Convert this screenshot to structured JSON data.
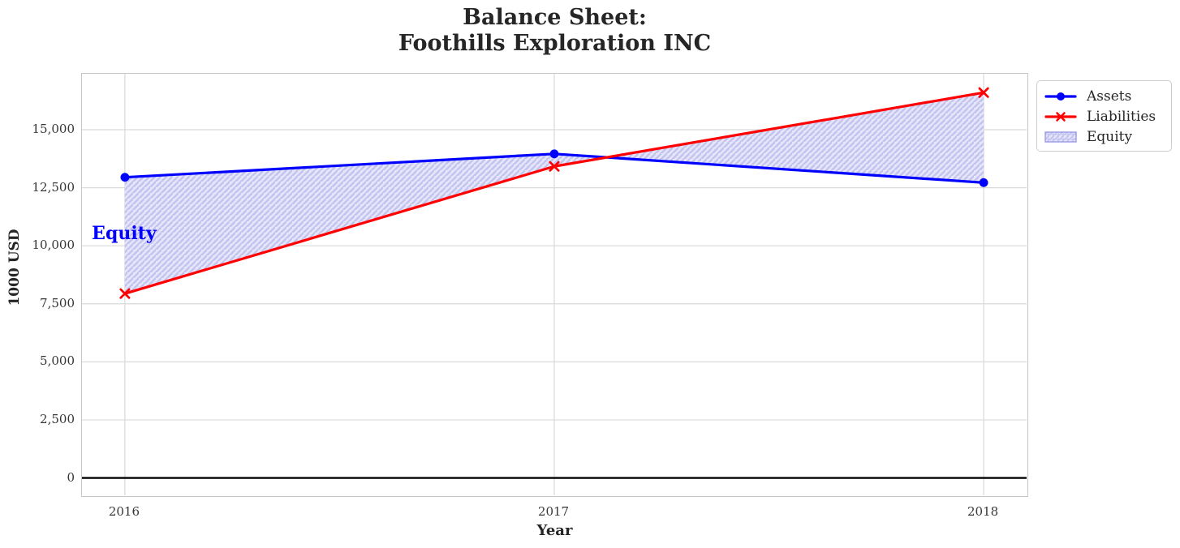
{
  "chart_data": {
    "type": "line",
    "title_lines": [
      "Balance Sheet:",
      "Foothills Exploration INC"
    ],
    "x": [
      2016,
      2017,
      2018
    ],
    "series": [
      {
        "name": "Assets",
        "color": "#0000ff",
        "marker": "circle",
        "values": [
          12950,
          13960,
          12720
        ]
      },
      {
        "name": "Liabilities",
        "color": "#ff0000",
        "marker": "x",
        "values": [
          7940,
          13420,
          16600
        ]
      }
    ],
    "equity_fill": {
      "name": "Equity",
      "between": [
        "Liabilities",
        "Assets"
      ],
      "derived_equity_values": [
        5010,
        540,
        -3880
      ],
      "face_color": "#e6e6fa",
      "hatch_color": "#c3c3f0",
      "hatch_pattern": "///",
      "legend_edge_color": "#9a9ae6"
    },
    "annotation": {
      "text": "Equity",
      "x": 2016,
      "y": 10450,
      "color": "#0000ff"
    },
    "xlabel": "Year",
    "ylabel": "1000 USD",
    "xlim": [
      2015.9,
      2018.1
    ],
    "ylim": [
      -750,
      17410
    ],
    "xticks": [
      2016,
      2017,
      2018
    ],
    "xtick_labels": [
      "2016",
      "2017",
      "2018"
    ],
    "yticks": [
      0,
      2500,
      5000,
      7500,
      10000,
      12500,
      15000
    ],
    "ytick_labels": [
      "0",
      "2,500",
      "5,000",
      "7,500",
      "10,000",
      "12,500",
      "15,000"
    ],
    "grid": true,
    "grid_color": "#d9d9d9",
    "spine_color": "#c6c6c6",
    "zero_line_color": "#000000",
    "legend": {
      "position": "outside-upper-right",
      "entries": [
        "Assets",
        "Liabilities",
        "Equity"
      ]
    }
  }
}
